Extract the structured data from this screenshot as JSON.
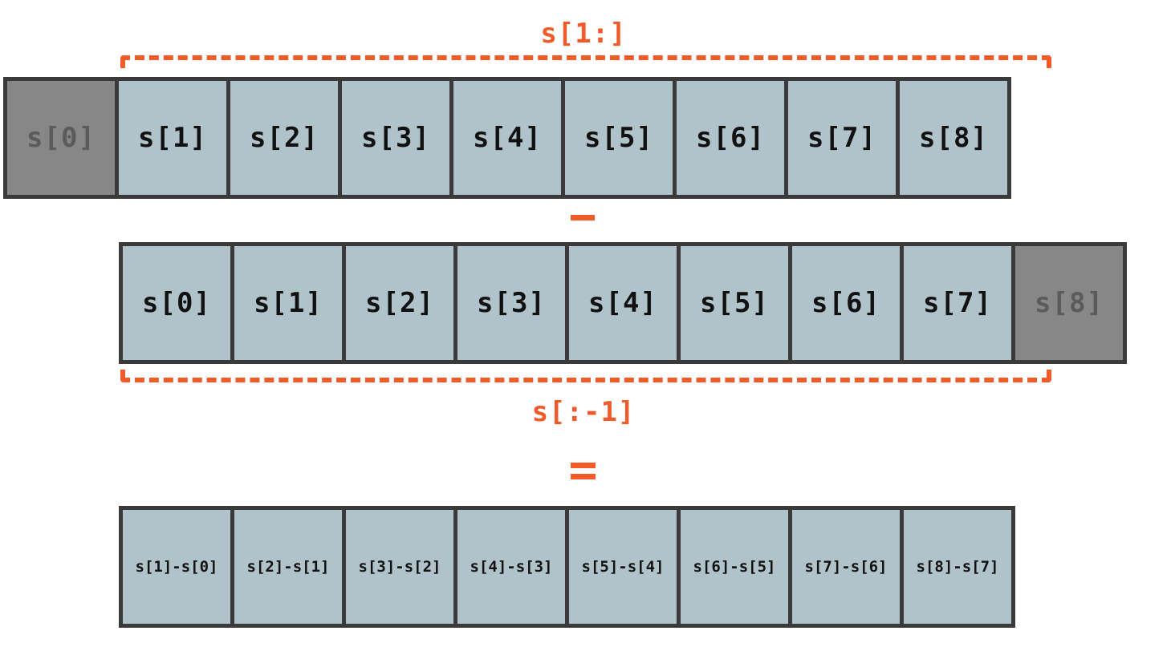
{
  "top_array": {
    "cells": [
      "s[0]",
      "s[1]",
      "s[2]",
      "s[3]",
      "s[4]",
      "s[5]",
      "s[6]",
      "s[7]",
      "s[8]"
    ],
    "excluded_index": 0,
    "slice_label": "s[1:]"
  },
  "operator_minus": "-",
  "middle_array": {
    "cells": [
      "s[0]",
      "s[1]",
      "s[2]",
      "s[3]",
      "s[4]",
      "s[5]",
      "s[6]",
      "s[7]",
      "s[8]"
    ],
    "excluded_index": 8,
    "slice_label": "s[:-1]"
  },
  "operator_equals": "=",
  "result_array": {
    "cells": [
      "s[1]-s[0]",
      "s[2]-s[1]",
      "s[3]-s[2]",
      "s[4]-s[3]",
      "s[5]-s[4]",
      "s[6]-s[5]",
      "s[7]-s[6]",
      "s[8]-s[7]"
    ]
  },
  "colors": {
    "accent": "#f15a29",
    "cell_fill": "#b0c3cb",
    "excluded_fill": "#878787",
    "border": "#3a3a3a"
  }
}
